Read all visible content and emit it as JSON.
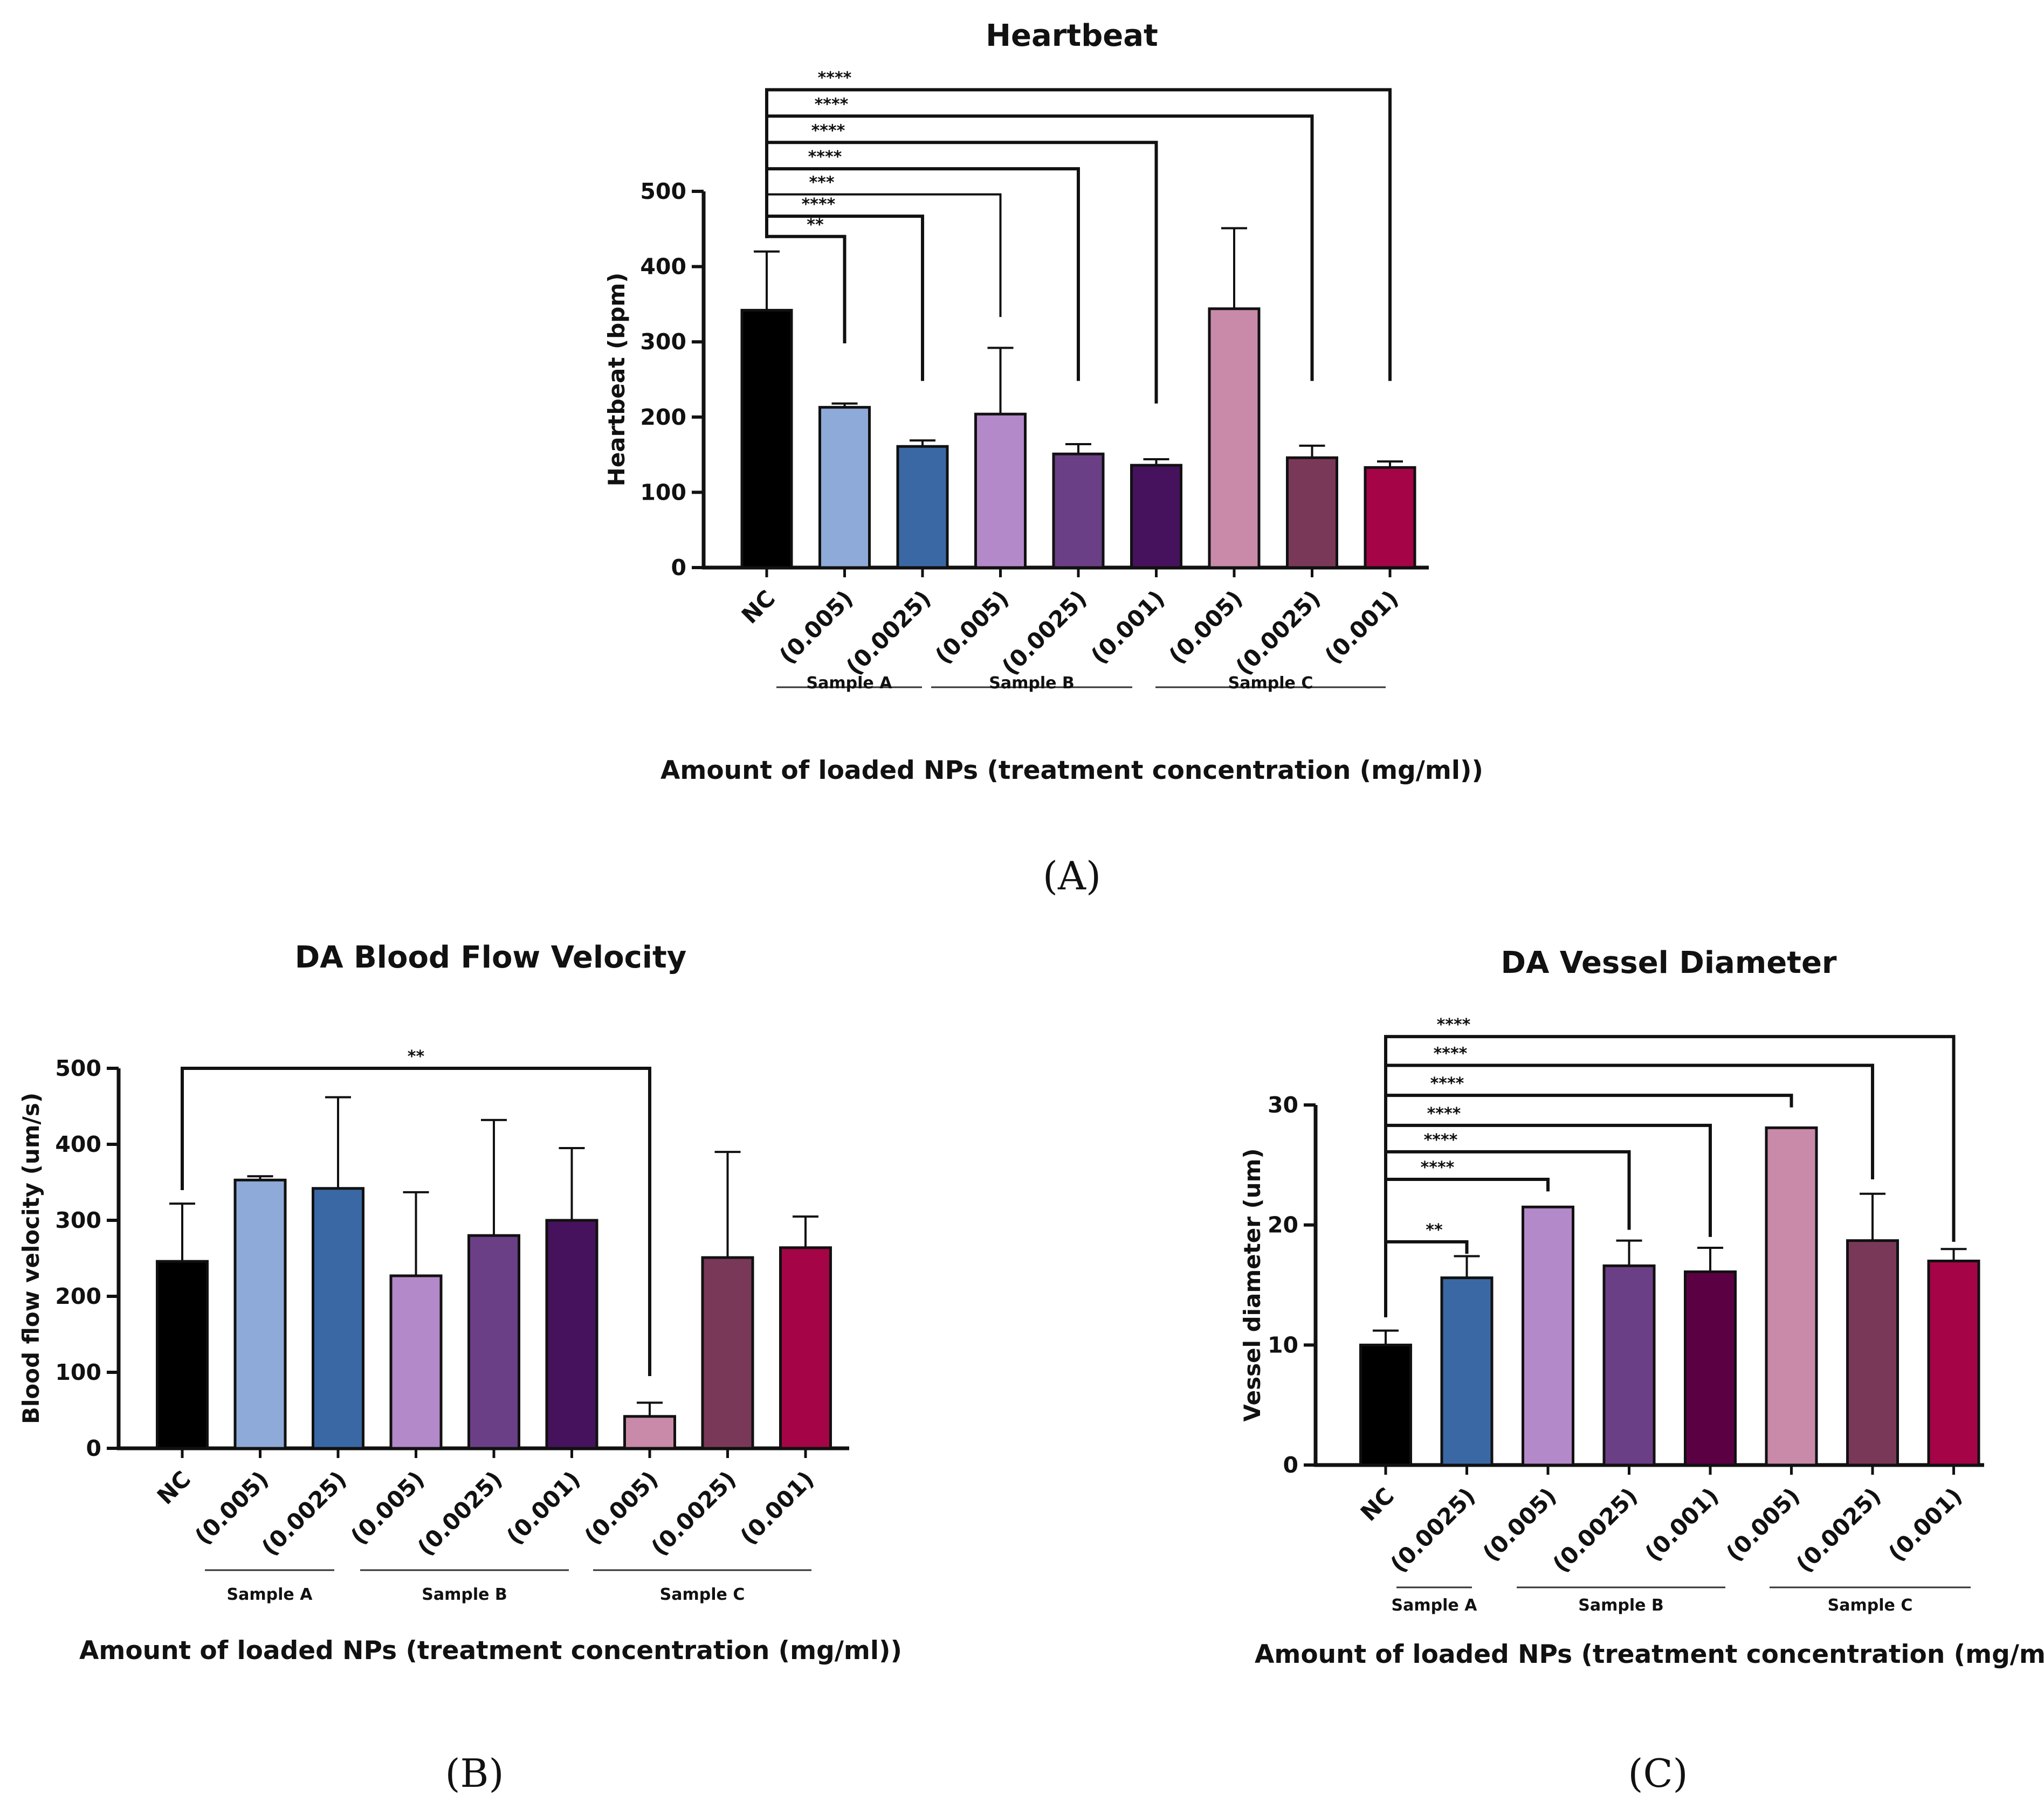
{
  "chart_data": [
    {
      "panel": "A",
      "type": "bar",
      "title": "Heartbeat",
      "ylabel": "Heartbeat (bpm)",
      "xlabel": "Amount of loaded NPs (treatment concentration (mg/ml))",
      "ylim": [
        0,
        500
      ],
      "yticks": [
        "0",
        "100",
        "200",
        "300",
        "400",
        "500"
      ],
      "grid": false,
      "categories": [
        "NC",
        "(0.005)",
        "(0.0025)",
        "(0.005)",
        "(0.0025)",
        "(0.001)",
        "(0.005)",
        "(0.0025)",
        "(0.001)"
      ],
      "values": [
        342,
        213,
        161,
        204,
        151,
        136,
        344,
        146,
        133
      ],
      "errors": [
        78,
        5,
        8,
        88,
        13,
        8,
        107,
        16,
        8
      ],
      "colors": [
        "#000000",
        "#8eaad8",
        "#3a68a5",
        "#b489c9",
        "#6b3f86",
        "#46125d",
        "#c88aa8",
        "#7a3858",
        "#a50446"
      ],
      "groups": [
        {
          "label": "Sample A",
          "from": 1,
          "to": 2
        },
        {
          "label": "Sample B",
          "from": 3,
          "to": 5
        },
        {
          "label": "Sample C",
          "from": 6,
          "to": 8
        }
      ],
      "comparisons": [
        {
          "from": 0,
          "to": 1,
          "label": "**",
          "y": 440,
          "end": 298
        },
        {
          "from": 0,
          "to": 2,
          "label": "****",
          "y": 467,
          "end": 248
        },
        {
          "from": 0,
          "to": 3,
          "label": "***",
          "y": 496,
          "end": 333
        },
        {
          "from": 0,
          "to": 4,
          "label": "****",
          "y": 530,
          "end": 248
        },
        {
          "from": 0,
          "to": 5,
          "label": "****",
          "y": 565,
          "end": 218
        },
        {
          "from": 0,
          "to": 7,
          "label": "****",
          "y": 600,
          "end": 248
        },
        {
          "from": 0,
          "to": 8,
          "label": "****",
          "y": 635,
          "end": 248
        }
      ],
      "panel_label": "(A)"
    },
    {
      "panel": "B",
      "type": "bar",
      "title": "DA Blood Flow Velocity",
      "ylabel": "Blood flow velocity (um/s)",
      "xlabel": "Amount of loaded NPs (treatment concentration (mg/ml))",
      "ylim": [
        0,
        500
      ],
      "yticks": [
        "0",
        "100",
        "200",
        "300",
        "400",
        "500"
      ],
      "grid": false,
      "categories": [
        "NC",
        "(0.005)",
        "(0.0025)",
        "(0.005)",
        "(0.0025)",
        "(0.001)",
        "(0.005)",
        "(0.0025)",
        "(0.001)"
      ],
      "values": [
        246,
        353,
        342,
        227,
        280,
        300,
        42,
        251,
        264
      ],
      "errors": [
        76,
        5,
        120,
        110,
        152,
        95,
        18,
        139,
        41
      ],
      "colors": [
        "#000000",
        "#8eaad8",
        "#3a68a5",
        "#b489c9",
        "#6b3f86",
        "#46125d",
        "#c88aa8",
        "#7a3858",
        "#a50446"
      ],
      "groups": [
        {
          "label": "Sample A",
          "from": 1,
          "to": 2
        },
        {
          "label": "Sample B",
          "from": 3,
          "to": 5
        },
        {
          "label": "Sample C",
          "from": 6,
          "to": 8
        }
      ],
      "comparisons": [
        {
          "from": 0,
          "to": 6,
          "label": "**",
          "y": 500,
          "end": 95
        }
      ],
      "panel_label": "(B)"
    },
    {
      "panel": "C",
      "type": "bar",
      "title": "DA Vessel Diameter",
      "ylabel": "Vessel diameter (um)",
      "xlabel": "Amount of loaded NPs (treatment concentration (mg/ml))",
      "ylim": [
        0,
        30
      ],
      "yticks": [
        "0",
        "10",
        "20",
        "30"
      ],
      "grid": false,
      "categories": [
        "NC",
        "(0.0025)",
        "(0.005)",
        "(0.0025)",
        "(0.001)",
        "(0.005)",
        "(0.0025)",
        "(0.001)"
      ],
      "values": [
        10,
        15.6,
        21.5,
        16.6,
        16.1,
        28.1,
        18.7,
        17.0
      ],
      "errors": [
        1.2,
        1.8,
        0,
        2.1,
        2.0,
        0,
        3.9,
        1.0
      ],
      "colors": [
        "#000000",
        "#3a68a5",
        "#b489c9",
        "#6b3f86",
        "#5c0044",
        "#c88aa8",
        "#7a3858",
        "#a50446"
      ],
      "groups": [
        {
          "label": "Sample A",
          "from": 1,
          "to": 1
        },
        {
          "label": "Sample B",
          "from": 2,
          "to": 4
        },
        {
          "label": "Sample C",
          "from": 5,
          "to": 7
        }
      ],
      "comparisons": [
        {
          "from": 0,
          "to": 1,
          "label": "**",
          "y": 18.6,
          "end": 17.6
        },
        {
          "from": 0,
          "to": 2,
          "label": "****",
          "y": 23.8,
          "end": 22.8
        },
        {
          "from": 0,
          "to": 3,
          "label": "****",
          "y": 26.1,
          "end": 19.6
        },
        {
          "from": 0,
          "to": 4,
          "label": "****",
          "y": 28.3,
          "end": 19.0
        },
        {
          "from": 0,
          "to": 5,
          "label": "****",
          "y": 30.8,
          "end": 29.8
        },
        {
          "from": 0,
          "to": 6,
          "label": "****",
          "y": 33.3,
          "end": 23.8
        },
        {
          "from": 0,
          "to": 7,
          "label": "****",
          "y": 35.7,
          "end": 18.6
        }
      ],
      "panel_label": "(C)"
    }
  ]
}
